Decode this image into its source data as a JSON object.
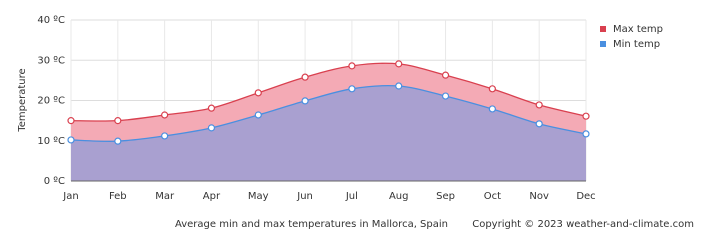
{
  "chart_data": {
    "type": "area-line",
    "y_label": "Temperature",
    "caption": "Average min and max temperatures in Mallorca, Spain",
    "copyright": "Copyright © 2023  weather-and-climate.com",
    "categories": [
      "Jan",
      "Feb",
      "Mar",
      "Apr",
      "May",
      "Jun",
      "Jul",
      "Aug",
      "Sep",
      "Oct",
      "Nov",
      "Dec"
    ],
    "series": [
      {
        "name": "Max temp",
        "color": "#d9404f",
        "fill": "#f4aab5",
        "values": [
          15.0,
          15.0,
          16.4,
          18.1,
          21.9,
          25.8,
          28.6,
          29.1,
          26.3,
          22.9,
          18.9,
          16.1
        ]
      },
      {
        "name": "Min temp",
        "color": "#4a8fe0",
        "fill": "#a9a0d0",
        "values": [
          10.2,
          9.9,
          11.2,
          13.2,
          16.4,
          19.9,
          22.9,
          23.6,
          21.1,
          17.9,
          14.2,
          11.7
        ]
      }
    ],
    "ylim": [
      0,
      40
    ],
    "yticks": [
      {
        "value": 0,
        "label": "0 ºC"
      },
      {
        "value": 10,
        "label": "10 ºC"
      },
      {
        "value": 20,
        "label": "20 ºC"
      },
      {
        "value": 30,
        "label": "30 ºC"
      },
      {
        "value": 40,
        "label": "40 ºC"
      }
    ],
    "grid": true,
    "legend": "top-right"
  }
}
